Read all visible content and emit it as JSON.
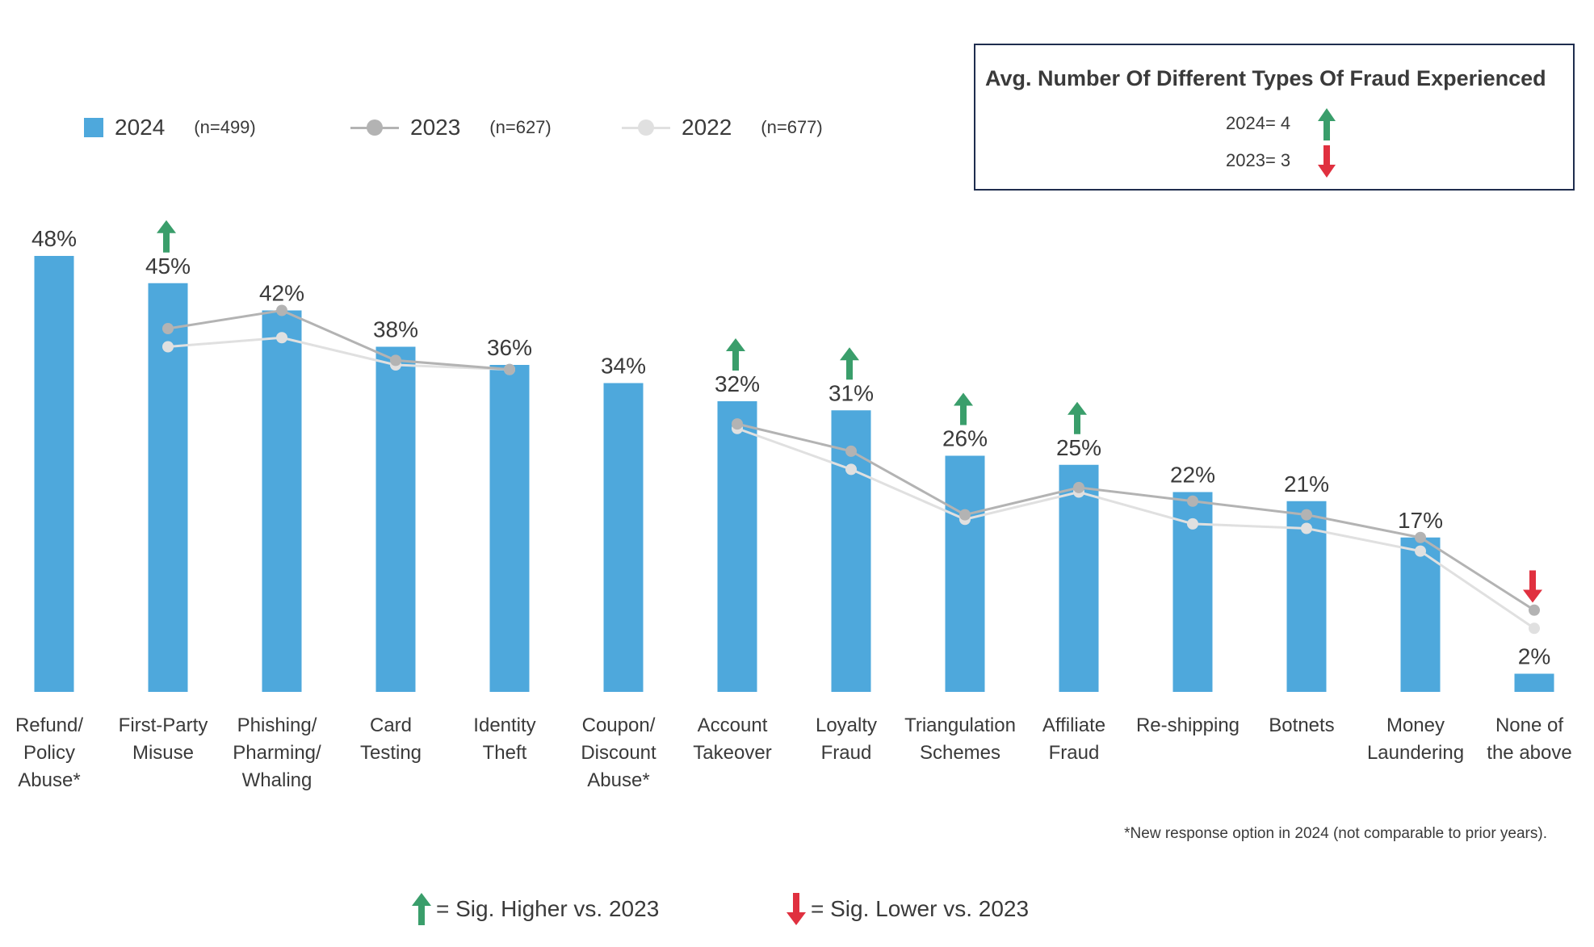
{
  "chart_data": {
    "type": "bar",
    "categories": [
      [
        "Refund/",
        "Policy",
        "Abuse*"
      ],
      [
        "First-Party",
        "Misuse"
      ],
      [
        "Phishing/",
        "Pharming/",
        "Whaling"
      ],
      [
        "Card",
        "Testing"
      ],
      [
        "Identity",
        "Theft"
      ],
      [
        "Coupon/",
        "Discount",
        "Abuse*"
      ],
      [
        "Account",
        "Takeover"
      ],
      [
        "Loyalty",
        "Fraud"
      ],
      [
        "Triangulation",
        "Schemes"
      ],
      [
        "Affiliate",
        "Fraud"
      ],
      [
        "Re-shipping"
      ],
      [
        "Botnets"
      ],
      [
        "Money",
        "Laundering"
      ],
      [
        "None of",
        "the above"
      ]
    ],
    "series": [
      {
        "name": "2024",
        "n": "(n=499)",
        "kind": "bar",
        "values": [
          48,
          45,
          42,
          38,
          36,
          34,
          32,
          31,
          26,
          25,
          22,
          21,
          17,
          2
        ],
        "labels": [
          "48%",
          "45%",
          "42%",
          "38%",
          "36%",
          "34%",
          "32%",
          "31%",
          "26%",
          "25%",
          "22%",
          "21%",
          "17%",
          "2%"
        ]
      },
      {
        "name": "2023",
        "n": "(n=627)",
        "kind": "line",
        "values": [
          null,
          40,
          42,
          36.5,
          35.5,
          null,
          29.5,
          26.5,
          19.5,
          22.5,
          21,
          19.5,
          17,
          9
        ]
      },
      {
        "name": "2022",
        "n": "(n=677)",
        "kind": "line",
        "values": [
          null,
          38,
          39,
          36,
          35.5,
          null,
          29,
          24.5,
          19,
          22,
          18.5,
          18,
          15.5,
          7
        ]
      }
    ],
    "significance": [
      "",
      "up",
      "",
      "",
      "",
      "",
      "up",
      "up",
      "up",
      "up",
      "",
      "",
      "",
      "down"
    ],
    "ylim": [
      0,
      52
    ],
    "colors": {
      "bar": "#4ea8dc",
      "line2023": "#b3b3b3",
      "line2022": "#e0e0e0",
      "up": "#3a9e6b",
      "down": "#e0303f"
    }
  },
  "legend": {
    "items": [
      {
        "name": "2024",
        "n": "(n=499)"
      },
      {
        "name": "2023",
        "n": "(n=627)"
      },
      {
        "name": "2022",
        "n": "(n=677)"
      }
    ]
  },
  "info_box": {
    "title": "Avg. Number Of Different Types Of Fraud Experienced",
    "rows": [
      {
        "text": "2024= 4",
        "sig": "up"
      },
      {
        "text": "2023= 3",
        "sig": "down"
      }
    ]
  },
  "footnote": "*New response option in 2024 (not comparable to prior years).",
  "sig_legend": {
    "higher": "= Sig. Higher vs. 2023",
    "lower": "= Sig. Lower vs. 2023"
  }
}
